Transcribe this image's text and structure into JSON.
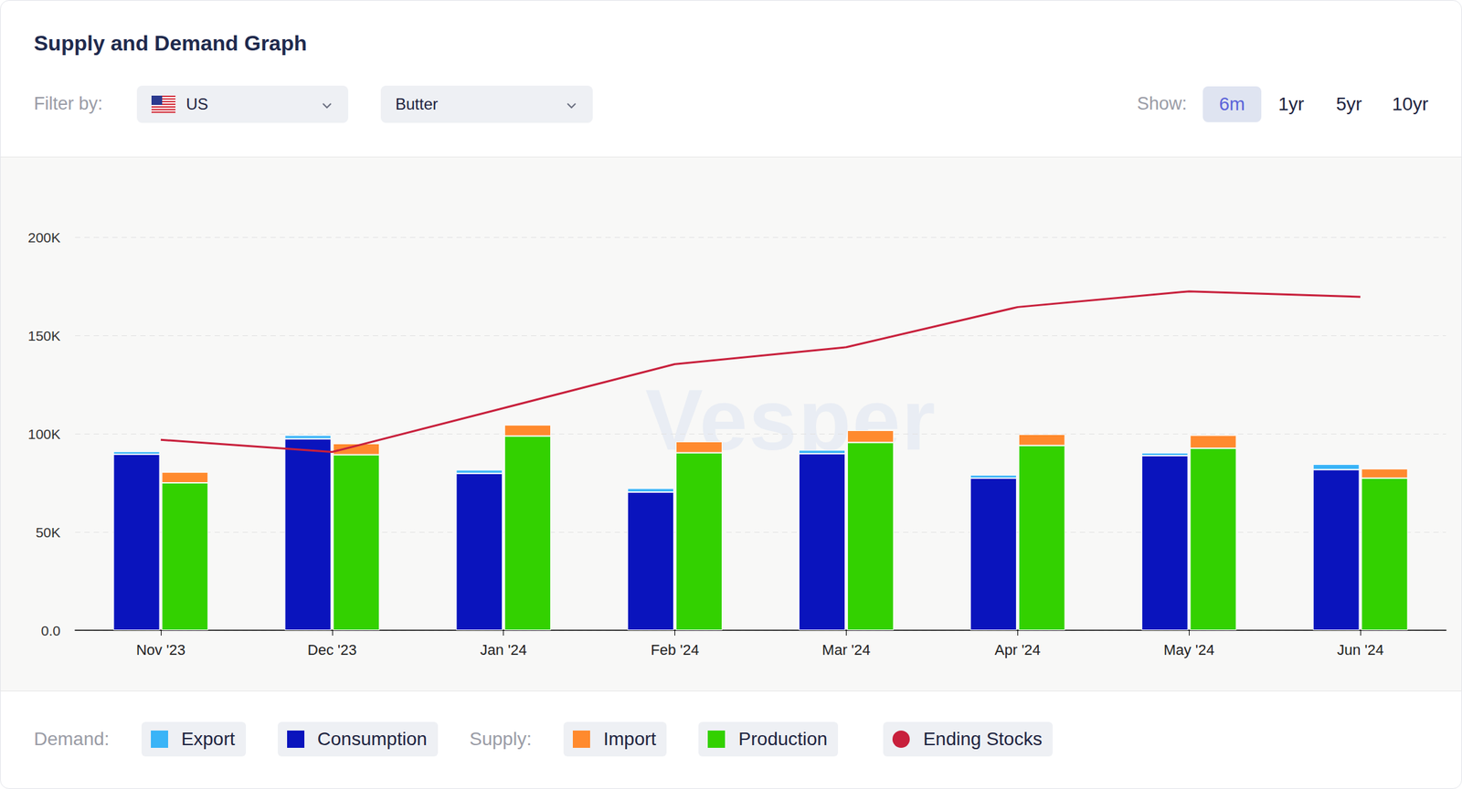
{
  "chart_data": {
    "type": "bar",
    "title": "Supply and Demand Graph",
    "categories": [
      "Nov '23",
      "Dec '23",
      "Jan '24",
      "Feb '24",
      "Mar '24",
      "Apr '24",
      "May '24",
      "Jun '24"
    ],
    "series": [
      {
        "name": "Consumption",
        "type": "bar",
        "color": "#0a14bd",
        "values": [
          89500,
          97400,
          79800,
          70300,
          89800,
          77400,
          88800,
          81700
        ]
      },
      {
        "name": "Export",
        "type": "bar",
        "color": "#3ab4f7",
        "values": [
          1500,
          1800,
          1800,
          1900,
          1900,
          1600,
          1500,
          2800
        ]
      },
      {
        "name": "Production",
        "type": "bar",
        "color": "#33d100",
        "values": [
          75000,
          89300,
          98800,
          90300,
          95500,
          94000,
          92600,
          77400
        ]
      },
      {
        "name": "Import",
        "type": "bar",
        "color": "#ff8a2e",
        "values": [
          5500,
          5700,
          5700,
          5700,
          6200,
          5700,
          6600,
          4800
        ]
      },
      {
        "name": "Ending Stocks",
        "type": "line",
        "color": "#c8203c",
        "marker": "none",
        "values": [
          96900,
          90700,
          113000,
          135400,
          144000,
          164400,
          172400,
          169600
        ]
      }
    ],
    "ylim": [
      0,
      200000
    ],
    "yticks": [
      {
        "value": 0,
        "label": "0.0"
      },
      {
        "value": 50000,
        "label": "50K"
      },
      {
        "value": 100000,
        "label": "100K"
      },
      {
        "value": 150000,
        "label": "150K"
      },
      {
        "value": 200000,
        "label": "200K"
      }
    ],
    "grid": true,
    "stacked": true,
    "legend": "bottom"
  },
  "ui": {
    "filter_label": "Filter by:",
    "filters": [
      "US",
      "Butter"
    ],
    "show_label": "Show:",
    "show_options": [
      "6m",
      "1yr",
      "5yr",
      "10yr"
    ],
    "show_selected": "6m",
    "legend_groups": [
      {
        "label": "Demand:",
        "series": [
          "Export",
          "Consumption"
        ]
      },
      {
        "label": "Supply:",
        "series": [
          "Import",
          "Production"
        ]
      }
    ],
    "watermark": "Vesper"
  }
}
